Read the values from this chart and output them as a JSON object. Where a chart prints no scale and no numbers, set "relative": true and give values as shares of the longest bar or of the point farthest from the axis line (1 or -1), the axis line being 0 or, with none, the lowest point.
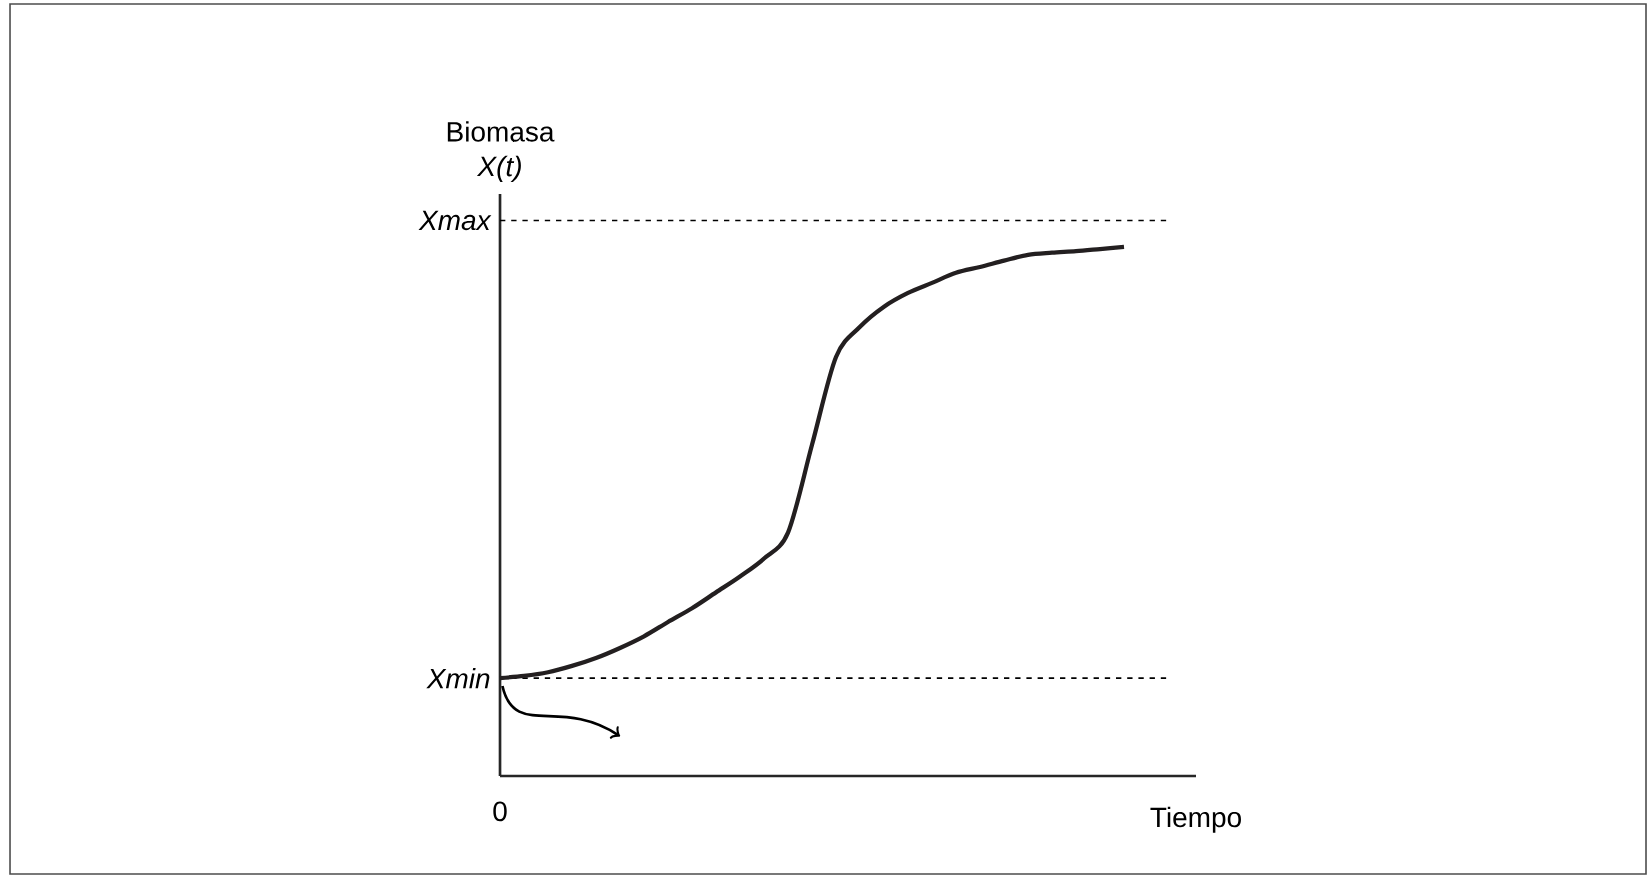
{
  "chart_data": {
    "type": "line",
    "relative": true,
    "ylabel": "Biomasa *X(t)*",
    "xlabel": "Tiempo",
    "annotations": [
      "0"
    ],
    "categories": [
      null,
      null,
      null,
      null,
      null,
      null,
      null,
      null,
      null,
      null,
      null,
      null,
      null,
      null,
      null,
      null,
      null,
      null,
      null,
      null,
      null,
      null,
      null,
      null,
      null,
      null,
      null
    ],
    "series": [
      {
        "color": "#231f20",
        "values": [
          0.185,
          0.189,
          0.196,
          0.208,
          0.223,
          0.242,
          0.264,
          0.291,
          0.317,
          0.347,
          0.377,
          0.411,
          0.46,
          0.626,
          0.792,
          0.849,
          0.887,
          0.913,
          0.932,
          0.951,
          0.962,
          0.974,
          0.985,
          0.989,
          0.992,
          0.996,
          1.0
        ]
      }
    ],
    "ref_lines": [
      {
        "axis": "y",
        "value": 1.05,
        "label": "Xmax",
        "line_style": "dotted"
      },
      {
        "axis": "y",
        "value": 0.185,
        "label": "Xmin",
        "line_style": "dotted"
      }
    ]
  }
}
